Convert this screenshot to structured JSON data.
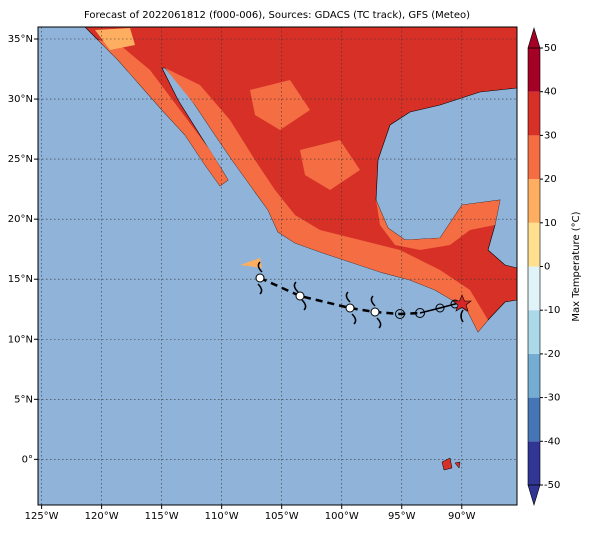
{
  "map": {
    "title": "Forecast of 2022061812 (f000-006), Sources: GDACS (TC track), GFS (Meteo)",
    "xlim": [
      -125.3,
      -85.4
    ],
    "ylim": [
      -3.8,
      36
    ],
    "xticks": [
      {
        "value": -125,
        "label": "125°W"
      },
      {
        "value": -120,
        "label": "120°W"
      },
      {
        "value": -115,
        "label": "115°W"
      },
      {
        "value": -110,
        "label": "110°W"
      },
      {
        "value": -105,
        "label": "105°W"
      },
      {
        "value": -100,
        "label": "100°W"
      },
      {
        "value": -95,
        "label": "95°W"
      },
      {
        "value": -90,
        "label": "90°W"
      }
    ],
    "yticks": [
      {
        "value": 0,
        "label": "0°"
      },
      {
        "value": 5,
        "label": "5°N"
      },
      {
        "value": 10,
        "label": "10°N"
      },
      {
        "value": 15,
        "label": "15°N"
      },
      {
        "value": 20,
        "label": "20°N"
      },
      {
        "value": 25,
        "label": "25°N"
      },
      {
        "value": 30,
        "label": "30°N"
      },
      {
        "value": 35,
        "label": "35°N"
      }
    ],
    "grid": true,
    "colorbar": {
      "label": "Max Temperature (°C)",
      "lim": [
        -50,
        50
      ],
      "ticks": [
        -50,
        -40,
        -30,
        -20,
        -10,
        0,
        10,
        20,
        30,
        40,
        50
      ],
      "colors": [
        "#313695",
        "#4575b4",
        "#74add1",
        "#abd9e9",
        "#e0f3f8",
        "#fee090",
        "#fdae61",
        "#f46d43",
        "#d73027",
        "#a50026"
      ]
    }
  }
}
